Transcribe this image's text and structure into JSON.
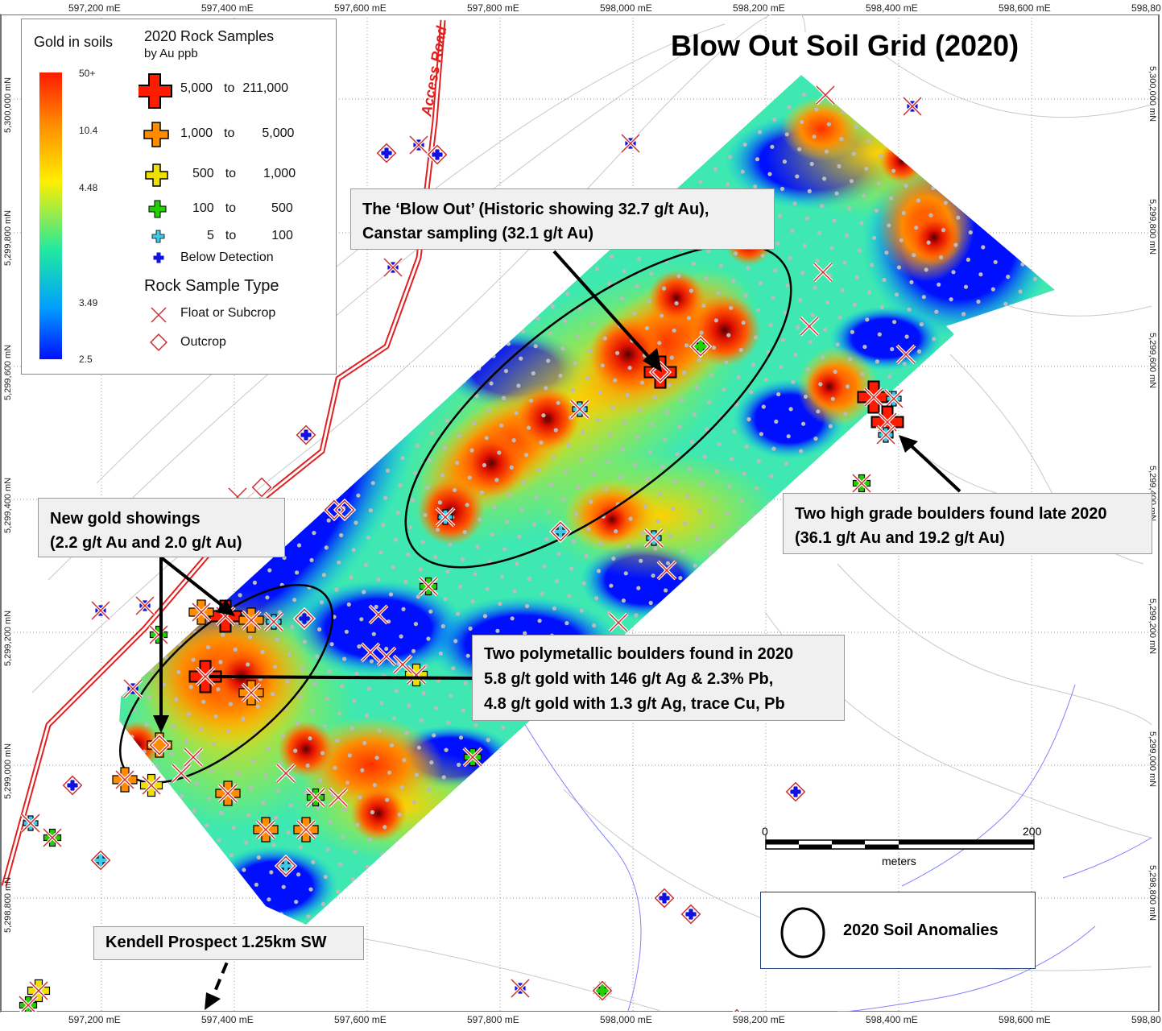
{
  "title": "Blow Out Soil Grid (2020)",
  "road_label": "Access Road",
  "axes": {
    "easting_top": [
      "597,200 mE",
      "597,400 mE",
      "597,600 mE",
      "597,800 mE",
      "598,000 mE",
      "598,200 mE",
      "598,400 mE",
      "598,600 mE",
      "598,80"
    ],
    "easting_bottom": [
      "597,200 mE",
      "597,400 mE",
      "597,600 mE",
      "597,800 mE",
      "598,000 mE",
      "598,200 mE",
      "598,400 mE",
      "598,600 mE",
      "598,80"
    ],
    "northing_left": [
      "5,300,000 mN",
      "5,299,800 mN",
      "5,299,600 mN",
      "5,299,400 mN",
      "5,299,200 mN",
      "5,299,000 mN",
      "5,298,800 mN"
    ],
    "northing_right": [
      "5,300,000 mN",
      "5,299,800 mN",
      "5,299,600 mN",
      "5,299,400 mN",
      "5,299,200 mN",
      "5,299,000 mN",
      "5,298,800 mN"
    ]
  },
  "legend": {
    "soils_title": "Gold in soils",
    "soils_ticks": [
      "50+",
      "10.4",
      "4.48",
      "3.49",
      "2.5"
    ],
    "colors": [
      "#ff1a00",
      "#ff8c00",
      "#ffee00",
      "#22e000",
      "#40e0d0",
      "#0010ff"
    ],
    "rock_title": "2020 Rock Samples",
    "rock_subtitle": "by Au ppb",
    "rock_classes": [
      {
        "from": "5,000",
        "to_word": "to",
        "to": "211,000",
        "color": "#ff1a00"
      },
      {
        "from": "1,000",
        "to_word": "to",
        "to": "5,000",
        "color": "#ff8c00"
      },
      {
        "from": "500",
        "to_word": "to",
        "to": "1,000",
        "color": "#f0e000"
      },
      {
        "from": "100",
        "to_word": "to",
        "to": "500",
        "color": "#22d000"
      },
      {
        "from": "5",
        "to_word": "to",
        "to": "100",
        "color": "#40c8e8"
      },
      {
        "label": "Below Detection",
        "color": "#1010e0"
      }
    ],
    "type_title": "Rock Sample Type",
    "types": [
      "Float or Subcrop",
      "Outcrop"
    ]
  },
  "annotations": {
    "blowout": [
      "The ‘Blow Out’ (Historic showing 32.7 g/t Au),",
      "Canstar sampling (32.1 g/t Au)"
    ],
    "boulders": [
      "Two high grade boulders found late 2020",
      "(36.1 g/t Au and 19.2 g/t Au)"
    ],
    "new_gold": [
      "New gold showings",
      "(2.2 g/t Au and 2.0 g/t Au)"
    ],
    "polymetallic": [
      "Two polymetallic boulders found in 2020",
      "5.8 g/t gold with 146 g/t Ag & 2.3% Pb,",
      "4.8 g/t gold with 1.3 g/t Ag, trace Cu, Pb"
    ],
    "kendell": "Kendell Prospect 1.25km SW",
    "anomalies": "2020 Soil Anomalies"
  },
  "scalebar": {
    "start": "0",
    "end": "200",
    "unit": "meters"
  }
}
